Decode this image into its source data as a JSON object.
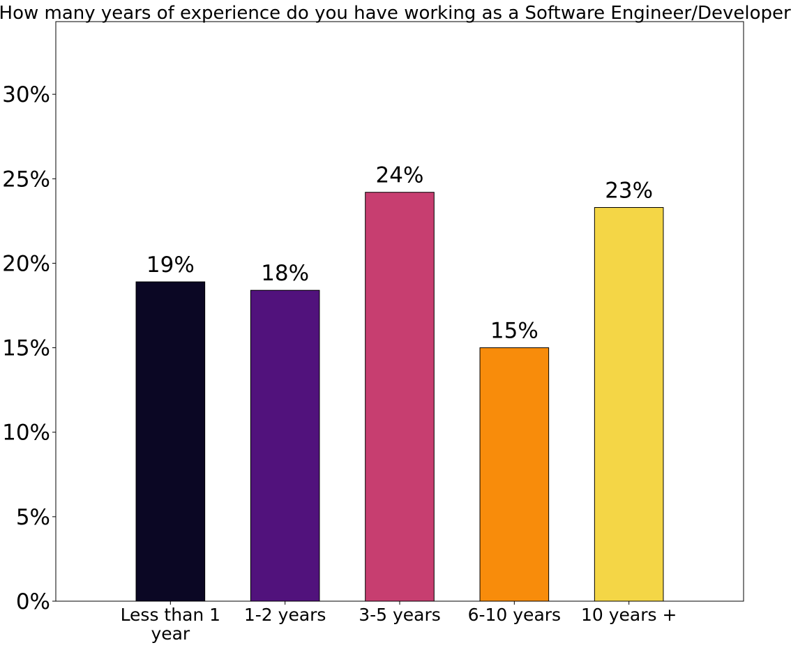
{
  "chart_data": {
    "type": "bar",
    "title": "How many years of experience do you have working as a Software Engineer/Developer?",
    "xlabel": "",
    "ylabel": "",
    "categories": [
      "Less than 1 year",
      "1-2 years",
      "3-5 years",
      "6-10 years",
      "10 years +"
    ],
    "category_lines": [
      [
        "Less than 1",
        "year"
      ],
      [
        "1-2 years"
      ],
      [
        "3-5 years"
      ],
      [
        "6-10 years"
      ],
      [
        "10 years +"
      ]
    ],
    "values": [
      18.9,
      18.4,
      24.2,
      15.0,
      23.3
    ],
    "data_labels": [
      "19%",
      "18%",
      "24%",
      "15%",
      "23%"
    ],
    "colors": [
      "#0b0724",
      "#51127c",
      "#c73e70",
      "#f88c0b",
      "#f4d646"
    ],
    "bar_edge_color": "#000000",
    "ylim": [
      0,
      34.3
    ],
    "yticks": [
      0,
      5,
      10,
      15,
      20,
      25,
      30
    ],
    "ytick_labels": [
      "0%",
      "5%",
      "10%",
      "15%",
      "20%",
      "25%",
      "30%"
    ],
    "grid": false,
    "legend": "none"
  }
}
